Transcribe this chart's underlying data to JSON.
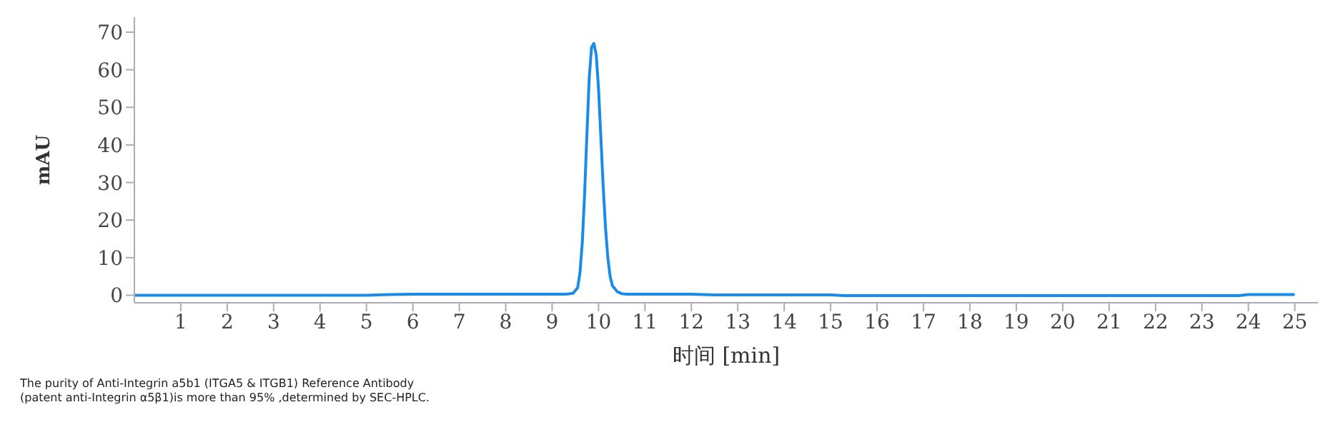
{
  "chart_data": {
    "type": "line",
    "xlabel": "时间 [min]",
    "ylabel": "mAU",
    "xlim": [
      0,
      25.5
    ],
    "xticks": [
      1,
      2,
      3,
      4,
      5,
      6,
      7,
      8,
      9,
      10,
      11,
      12,
      13,
      14,
      15,
      16,
      17,
      18,
      19,
      20,
      21,
      22,
      23,
      24,
      25
    ],
    "ylim": [
      -2,
      74
    ],
    "yticks": [
      0,
      10,
      20,
      30,
      40,
      50,
      60,
      70
    ],
    "grid": false,
    "legend": false,
    "marker": "none",
    "line_style": "solid",
    "series": [
      {
        "color": "#1a8ce8",
        "x": [
          0,
          1,
          2,
          3,
          4,
          5,
          5.5,
          6,
          7,
          8,
          9,
          9.3,
          9.45,
          9.55,
          9.6,
          9.65,
          9.7,
          9.75,
          9.8,
          9.85,
          9.9,
          9.95,
          10,
          10.05,
          10.1,
          10.15,
          10.2,
          10.25,
          10.3,
          10.4,
          10.5,
          10.6,
          11,
          12,
          12.5,
          13,
          14,
          15,
          15.3,
          16,
          17,
          18,
          19,
          20,
          21,
          22,
          23,
          23.8,
          24,
          25
        ],
        "values": [
          0,
          0,
          0,
          0,
          0,
          0,
          0.2,
          0.3,
          0.3,
          0.3,
          0.3,
          0.3,
          0.5,
          2,
          6,
          14,
          27,
          43,
          58,
          66,
          67,
          64,
          55,
          42,
          29,
          18,
          10,
          5,
          2.5,
          1,
          0.4,
          0.3,
          0.3,
          0.3,
          0.1,
          0.1,
          0.1,
          0.1,
          -0.1,
          -0.1,
          -0.1,
          -0.1,
          -0.1,
          -0.1,
          -0.1,
          -0.1,
          -0.1,
          -0.1,
          0.2,
          0.2
        ]
      }
    ],
    "annotations": [
      "The purity of Anti-Integrin a5b1 (ITGA5 & ITGB1) Reference Antibody (patent anti-Integrin α5β1)is more than 95% ,determined by SEC-HPLC."
    ]
  }
}
